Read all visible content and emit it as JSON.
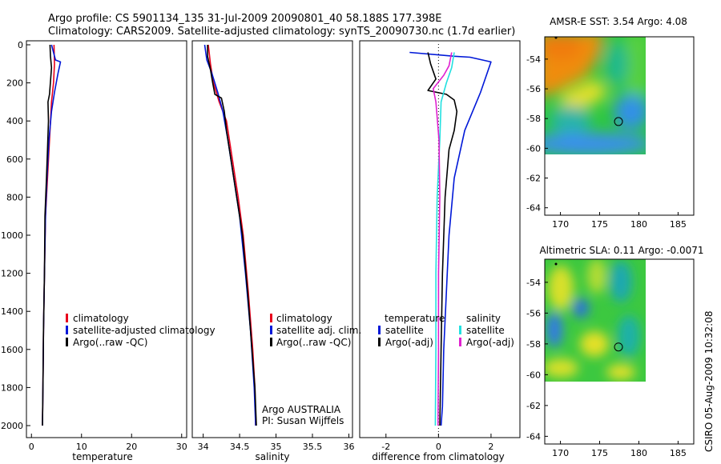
{
  "header": {
    "line1": "Argo profile: CS 5901134_135 31-Jul-2009 20090801_40 58.188S 177.398E",
    "line2": "Climatology: CARS2009. Satellite-adjusted climatology: synTS_20090730.nc (1.7d earlier)"
  },
  "side_stamp": "CSIRO 05-Aug-2009 10:32:08",
  "credit": {
    "line1": "Argo AUSTRALIA",
    "line2": "PI: Susan Wijffels"
  },
  "colors": {
    "red": "#e8001c",
    "blue": "#0018d8",
    "black": "#000000",
    "cyan": "#22e0e0",
    "magenta": "#e020d0"
  },
  "chart_data": [
    {
      "type": "line",
      "id": "temperature",
      "xlabel": "temperature",
      "xlim": [
        -1,
        31
      ],
      "ylim": [
        2050,
        0
      ],
      "xticks": [
        "0",
        "10",
        "20",
        "30"
      ],
      "yticks": [
        "0",
        "200",
        "400",
        "600",
        "800",
        "1000",
        "1200",
        "1400",
        "1600",
        "1800",
        "2000"
      ],
      "legend": [
        "climatology",
        "satellite-adjusted climatology",
        "Argo(..raw -QC)"
      ],
      "series": [
        {
          "name": "climatology",
          "color": "red",
          "points": [
            [
              4.5,
              0
            ],
            [
              4.6,
              100
            ],
            [
              4.4,
              200
            ],
            [
              4.0,
              300
            ],
            [
              3.6,
              500
            ],
            [
              3.2,
              700
            ],
            [
              2.8,
              900
            ],
            [
              2.6,
              1200
            ],
            [
              2.4,
              1500
            ],
            [
              2.3,
              1800
            ],
            [
              2.2,
              2000
            ]
          ]
        },
        {
          "name": "satellite-adjusted climatology",
          "color": "blue",
          "points": [
            [
              4.0,
              0
            ],
            [
              4.8,
              80
            ],
            [
              5.8,
              90
            ],
            [
              5.3,
              150
            ],
            [
              4.6,
              250
            ],
            [
              4.0,
              350
            ],
            [
              3.5,
              500
            ],
            [
              3.1,
              700
            ],
            [
              2.8,
              900
            ],
            [
              2.6,
              1200
            ],
            [
              2.4,
              1500
            ],
            [
              2.3,
              1800
            ],
            [
              2.2,
              2000
            ]
          ]
        },
        {
          "name": "Argo(..raw -QC)",
          "color": "black",
          "points": [
            [
              3.7,
              0
            ],
            [
              3.8,
              60
            ],
            [
              4.0,
              120
            ],
            [
              3.6,
              260
            ],
            [
              3.3,
              300
            ],
            [
              3.4,
              400
            ],
            [
              3.2,
              550
            ],
            [
              3.0,
              700
            ],
            [
              2.7,
              900
            ],
            [
              2.6,
              1200
            ],
            [
              2.4,
              1500
            ],
            [
              2.3,
              1800
            ],
            [
              2.2,
              2000
            ]
          ]
        }
      ]
    },
    {
      "type": "line",
      "id": "salinity",
      "xlabel": "salinity",
      "xlim": [
        33.85,
        36.05
      ],
      "ylim": [
        2050,
        0
      ],
      "xticks": [
        "34",
        "34.5",
        "35",
        "35.5",
        "36"
      ],
      "yticks": [],
      "legend": [
        "climatology",
        "satellite adj. clim.",
        "Argo(..raw -QC)"
      ],
      "series": [
        {
          "name": "climatology",
          "color": "red",
          "points": [
            [
              34.07,
              0
            ],
            [
              34.1,
              100
            ],
            [
              34.14,
              200
            ],
            [
              34.22,
              300
            ],
            [
              34.32,
              400
            ],
            [
              34.4,
              600
            ],
            [
              34.48,
              800
            ],
            [
              34.55,
              1000
            ],
            [
              34.62,
              1300
            ],
            [
              34.68,
              1600
            ],
            [
              34.71,
              1800
            ],
            [
              34.72,
              2000
            ]
          ]
        },
        {
          "name": "satellite adj. clim.",
          "color": "blue",
          "points": [
            [
              34.02,
              0
            ],
            [
              34.05,
              80
            ],
            [
              34.12,
              150
            ],
            [
              34.2,
              250
            ],
            [
              34.27,
              350
            ],
            [
              34.34,
              500
            ],
            [
              34.42,
              700
            ],
            [
              34.5,
              900
            ],
            [
              34.58,
              1200
            ],
            [
              34.65,
              1500
            ],
            [
              34.7,
              1800
            ],
            [
              34.72,
              2000
            ]
          ]
        },
        {
          "name": "Argo(..raw -QC)",
          "color": "black",
          "points": [
            [
              34.06,
              0
            ],
            [
              34.06,
              60
            ],
            [
              34.1,
              130
            ],
            [
              34.13,
              200
            ],
            [
              34.16,
              260
            ],
            [
              34.25,
              280
            ],
            [
              34.29,
              350
            ],
            [
              34.32,
              450
            ],
            [
              34.38,
              600
            ],
            [
              34.46,
              800
            ],
            [
              34.54,
              1000
            ],
            [
              34.61,
              1300
            ],
            [
              34.67,
              1600
            ],
            [
              34.71,
              1800
            ],
            [
              34.73,
              2000
            ]
          ]
        }
      ]
    },
    {
      "type": "line",
      "id": "difference",
      "xlabel": "difference from climatology",
      "xlim": [
        -3,
        3.1
      ],
      "ylim": [
        2050,
        0
      ],
      "xticks": [
        "-2",
        "0",
        "2"
      ],
      "yticks": [],
      "legend_headings": [
        "temperature",
        "salinity"
      ],
      "legend": [
        "satellite",
        "Argo(-adj)",
        "satellite",
        "Argo(-adj)"
      ],
      "series": [
        {
          "name": "satellite",
          "group": "temperature",
          "color": "blue",
          "points": [
            [
              -1.1,
              40
            ],
            [
              0.6,
              60
            ],
            [
              1.2,
              65
            ],
            [
              2.0,
              90
            ],
            [
              1.6,
              250
            ],
            [
              1.0,
              450
            ],
            [
              0.6,
              700
            ],
            [
              0.4,
              1000
            ],
            [
              0.3,
              1300
            ],
            [
              0.2,
              1600
            ],
            [
              0.15,
              1900
            ],
            [
              0.1,
              2000
            ]
          ]
        },
        {
          "name": "Argo(-adj)",
          "group": "temperature",
          "color": "black",
          "points": [
            [
              -0.4,
              40
            ],
            [
              -0.3,
              100
            ],
            [
              -0.1,
              180
            ],
            [
              -0.4,
              240
            ],
            [
              0.3,
              260
            ],
            [
              0.6,
              290
            ],
            [
              0.7,
              350
            ],
            [
              0.6,
              450
            ],
            [
              0.4,
              550
            ],
            [
              0.25,
              800
            ],
            [
              0.15,
              1200
            ],
            [
              0.1,
              1600
            ],
            [
              0.05,
              2000
            ]
          ]
        },
        {
          "name": "satellite",
          "group": "salinity",
          "color": "cyan",
          "points": [
            [
              0.6,
              40
            ],
            [
              0.5,
              120
            ],
            [
              0.3,
              200
            ],
            [
              0.1,
              300
            ],
            [
              0.05,
              500
            ],
            [
              -0.05,
              800
            ],
            [
              -0.1,
              1200
            ],
            [
              -0.1,
              1600
            ],
            [
              -0.12,
              2000
            ]
          ]
        },
        {
          "name": "Argo(-adj)",
          "group": "salinity",
          "color": "magenta",
          "points": [
            [
              0.5,
              40
            ],
            [
              0.4,
              110
            ],
            [
              0.2,
              160
            ],
            [
              -0.2,
              230
            ],
            [
              -0.1,
              300
            ],
            [
              0.02,
              500
            ],
            [
              0.05,
              800
            ],
            [
              0.0,
              1200
            ],
            [
              0.0,
              1600
            ],
            [
              -0.02,
              2000
            ]
          ]
        }
      ]
    },
    {
      "type": "heatmap",
      "id": "sst-map",
      "title": "AMSR-E SST: 3.54 Argo: 4.08",
      "xlim": [
        168,
        187
      ],
      "ylim": [
        -64.5,
        -52.5
      ],
      "xticks": [
        "170",
        "175",
        "180",
        "185"
      ],
      "yticks": [
        "-54",
        "-56",
        "-58",
        "-60",
        "-62",
        "-64"
      ],
      "marker": [
        177.4,
        -58.2
      ]
    },
    {
      "type": "heatmap",
      "id": "sla-map",
      "title": "Altimetric SLA: 0.11 Argo: -0.0071",
      "xlim": [
        168,
        187
      ],
      "ylim": [
        -64.5,
        -52.5
      ],
      "xticks": [
        "170",
        "175",
        "180",
        "185"
      ],
      "yticks": [
        "-54",
        "-56",
        "-58",
        "-60",
        "-62",
        "-64"
      ],
      "marker": [
        177.4,
        -58.2
      ]
    }
  ]
}
